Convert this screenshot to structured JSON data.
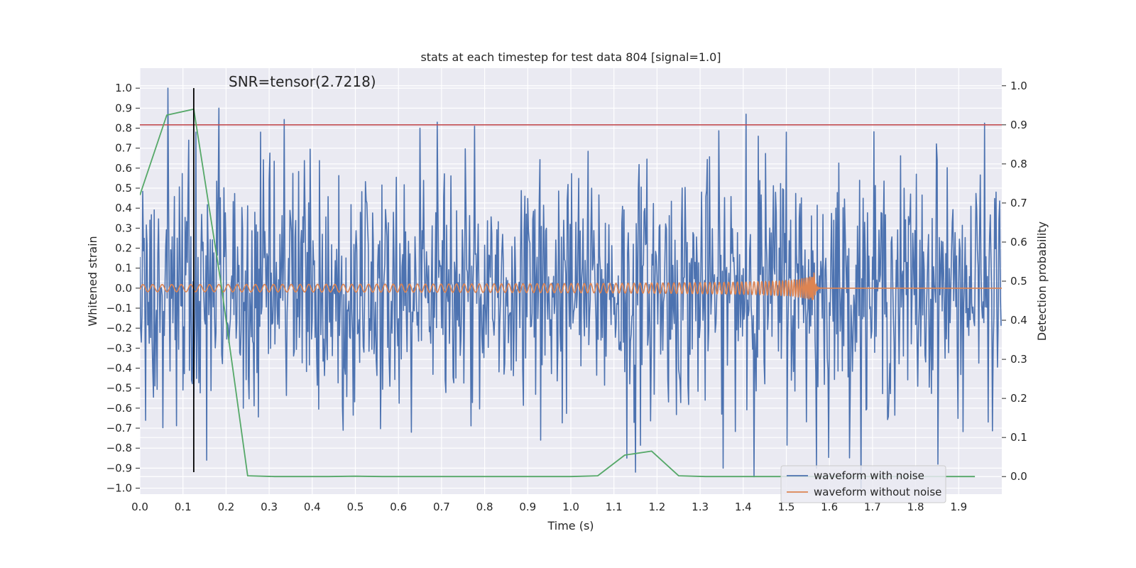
{
  "chart_data": {
    "type": "line",
    "title": "stats at each timestep for test data 804 [signal=1.0]",
    "xlabel": "Time (s)",
    "ylabel": "Whitened strain",
    "y2label": "Detection probability",
    "xlim": [
      0.0,
      2.0
    ],
    "ylim": [
      -1.03,
      1.1
    ],
    "y2lim": [
      -0.045,
      1.045
    ],
    "xticks": [
      0.0,
      0.1,
      0.2,
      0.3,
      0.4,
      0.5,
      0.6,
      0.7,
      0.8,
      0.9,
      1.0,
      1.1,
      1.2,
      1.3,
      1.4,
      1.5,
      1.6,
      1.7,
      1.8,
      1.9
    ],
    "xtick_labels": [
      "0.0",
      "0.1",
      "0.2",
      "0.3",
      "0.4",
      "0.5",
      "0.6",
      "0.7",
      "0.8",
      "0.9",
      "1.0",
      "1.1",
      "1.2",
      "1.3",
      "1.4",
      "1.5",
      "1.6",
      "1.7",
      "1.8",
      "1.9"
    ],
    "yticks": [
      1.0,
      0.9,
      0.8,
      0.7,
      0.6,
      0.5,
      0.4,
      0.3,
      0.2,
      0.1,
      0.0,
      -0.1,
      -0.2,
      -0.3,
      -0.4,
      -0.5,
      -0.6,
      -0.7,
      -0.8,
      -0.9,
      -1.0
    ],
    "ytick_labels": [
      "1.0",
      "0.9",
      "0.8",
      "0.7",
      "0.6",
      "0.5",
      "0.4",
      "0.3",
      "0.2",
      "0.1",
      "0.0",
      "−0.1",
      "−0.2",
      "−0.3",
      "−0.4",
      "−0.5",
      "−0.6",
      "−0.7",
      "−0.8",
      "−0.9",
      "−1.0"
    ],
    "y2ticks": [
      1.0,
      0.9,
      0.8,
      0.7,
      0.6,
      0.5,
      0.4,
      0.3,
      0.2,
      0.1,
      0.0
    ],
    "y2tick_labels": [
      "1.0",
      "0.9",
      "0.8",
      "0.7",
      "0.6",
      "0.5",
      "0.4",
      "0.3",
      "0.2",
      "0.1",
      "0.0"
    ],
    "grid": true,
    "legend_position": "bottom-right",
    "annotation": "SNR=tensor(2.7218)",
    "series": [
      {
        "name": "waveform with noise",
        "axis": "left",
        "color": "#4c72b0",
        "generator": "noise",
        "num_points": 1200,
        "amplitude_std": 0.3,
        "range": [
          -1.0,
          1.0
        ],
        "peaks": [
          [
            0.065,
            1.0
          ],
          [
            0.183,
            0.9
          ],
          [
            0.13,
            0.78
          ],
          [
            0.69,
            0.83
          ],
          [
            0.65,
            0.8
          ],
          [
            1.406,
            0.87
          ],
          [
            1.435,
            0.76
          ],
          [
            1.5,
            0.78
          ],
          [
            0.113,
            0.74
          ],
          [
            1.85,
            0.64
          ],
          [
            0.155,
            -0.86
          ],
          [
            1.13,
            -0.85
          ],
          [
            1.15,
            -0.92
          ],
          [
            1.57,
            -0.9
          ],
          [
            0.93,
            -0.76
          ],
          [
            1.35,
            -0.63
          ],
          [
            0.24,
            -0.6
          ],
          [
            0.63,
            -0.72
          ]
        ]
      },
      {
        "name": "waveform without noise",
        "axis": "left",
        "color": "#dd8452",
        "generator": "chirp",
        "t_merge": 1.565,
        "base_amplitude": 0.018,
        "peak_amplitude": 0.1,
        "range": [
          -0.15,
          0.15
        ]
      },
      {
        "name": "detection probability",
        "axis": "right",
        "color": "#55a868",
        "x": [
          0.0,
          0.0625,
          0.125,
          0.1875,
          0.25,
          0.3125,
          0.375,
          0.4375,
          0.5,
          0.5625,
          0.625,
          0.6875,
          0.75,
          0.8125,
          0.875,
          0.9375,
          1.0,
          1.0625,
          1.125,
          1.1875,
          1.25,
          1.3125,
          1.375,
          1.4375,
          1.5,
          1.5625,
          1.625,
          1.6875,
          1.75,
          1.8125,
          1.875,
          1.9375
        ],
        "y": [
          0.72,
          0.925,
          0.94,
          0.5,
          0.002,
          0.0,
          0.0,
          0.0,
          0.001,
          0.0,
          0.0,
          0.0,
          0.0,
          0.0,
          0.0,
          0.0,
          0.0,
          0.002,
          0.055,
          0.065,
          0.002,
          0.0,
          0.0,
          0.0,
          0.0,
          0.0,
          0.0,
          0.0,
          0.0,
          0.0,
          0.0,
          0.0
        ]
      }
    ],
    "threshold": {
      "axis": "right",
      "value": 0.9,
      "color": "#c44e52"
    },
    "marker_line": {
      "x": 0.125,
      "y_range": [
        -0.92,
        1.0
      ],
      "color": "#000000"
    }
  }
}
